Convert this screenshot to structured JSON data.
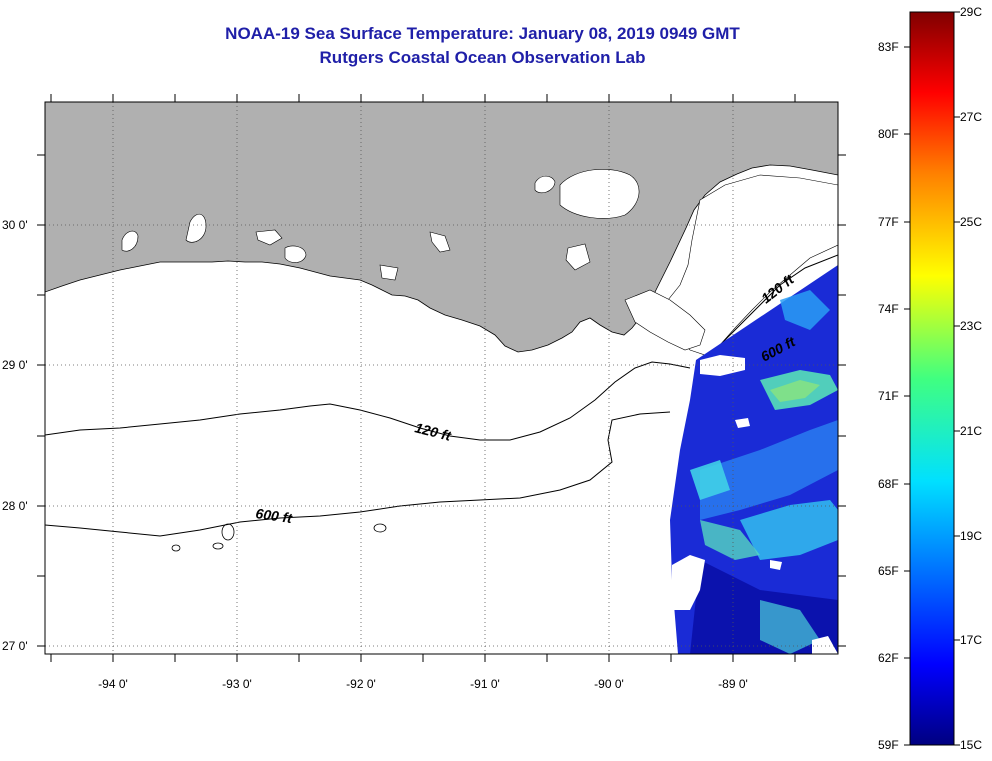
{
  "header": {
    "title": "NOAA-19 Sea Surface Temperature:  January 08, 2019 0949 GMT",
    "subtitle": "Rutgers Coastal Ocean Observation Lab"
  },
  "map": {
    "lon_labels": [
      "-94 0'",
      "-93 0'",
      "-92 0'",
      "-91 0'",
      "-90 0'",
      "-89 0'"
    ],
    "lat_labels": [
      "30 0'",
      "29 0'",
      "28 0'",
      "27 0'"
    ],
    "contour_labels": [
      "120 ft",
      "600 ft",
      "120 ft",
      "600 ft"
    ],
    "colors": {
      "land": "#b0b0b0",
      "water": "#ffffff",
      "contour": "#000000"
    }
  },
  "colorbar": {
    "fahrenheit_labels": [
      "83F",
      "80F",
      "77F",
      "74F",
      "71F",
      "68F",
      "65F",
      "62F",
      "59F"
    ],
    "celsius_labels": [
      "29C",
      "27C",
      "25C",
      "23C",
      "21C",
      "19C",
      "17C",
      "15C"
    ],
    "range_c": [
      15,
      29
    ],
    "range_f": [
      59,
      84.2
    ],
    "colormap": "jet"
  }
}
